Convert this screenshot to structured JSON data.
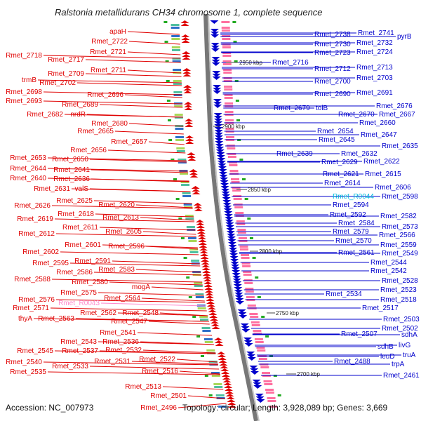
{
  "title": "Ralstonia metallidurans CH34 chromosome 1, complete sequence",
  "footer": {
    "accession": "Accession: NC_007973",
    "summary": "Topology: circular; Length: 3,928,089 bp; Genes: 3,669"
  },
  "colors": {
    "left_genes": "#e00000",
    "right_genes": "#0000cc",
    "rna_left": "#ff88cc",
    "rna_right": "#00bbdd",
    "backbone": "#888888",
    "tick": "#22aa22"
  },
  "kbp_markers": [
    "2950 kbp",
    "2900 kbp",
    "2850 kbp",
    "2800 kbp",
    "2750 kbp",
    "2700 kbp"
  ],
  "left_labels": [
    "apaH",
    "Rmet_2722",
    "Rmet_2721",
    "Rmet_2718",
    "Rmet_2717",
    "Rmet_2711",
    "Rmet_2709",
    "trmB",
    "Rmet_2702",
    "Rmet_2698",
    "Rmet_2696",
    "Rmet_2693",
    "Rmet_2689",
    "Rmet_2682",
    "nrdR",
    "Rmet_2680",
    "Rmet_2665",
    "Rmet_2657",
    "Rmet_2656",
    "Rmet_2653",
    "Rmet_2650",
    "Rmet_2644",
    "Rmet_2641",
    "Rmet_2640",
    "Rmet_2636",
    "Rmet_2631",
    "valS",
    "Rmet_2625",
    "Rmet_2626",
    "Rmet_2620",
    "Rmet_2618",
    "Rmet_2619",
    "Rmet_2613",
    "Rmet_2611",
    "Rmet_2612",
    "Rmet_2605",
    "Rmet_2601",
    "Rmet_2596",
    "Rmet_2602",
    "Rmet_2591",
    "Rmet_2595",
    "Rmet_2586",
    "Rmet_2583",
    "Rmet_2588",
    "Rmet_2580",
    "mogA",
    "Rmet_2575",
    "Rmet_2564",
    "Rmet_2576",
    "Rmet_R0043",
    "Rmet_2571",
    "Rmet_2562",
    "Rmet_2548",
    "thyA",
    "Rmet_2563",
    "Rmet_2547",
    "Rmet_2541",
    "Rmet_2543",
    "Rmet_2536",
    "Rmet_2545",
    "Rmet_2537",
    "Rmet_2532",
    "Rmet_2540",
    "Rmet_2531",
    "Rmet_2522",
    "Rmet_2533",
    "Rmet_2535",
    "Rmet_2516",
    "Rmet_2513",
    "Rmet_2501",
    "Rmet_2496"
  ],
  "right_labels": [
    "Rmet_2738",
    "Rmet_2741",
    "pyrB",
    "Rmet_2730",
    "Rmet_2732",
    "Rmet_2723",
    "Rmet_2724",
    "Rmet_2716",
    "Rmet_2712",
    "Rmet_2713",
    "Rmet_2703",
    "Rmet_2700",
    "Rmet_2690",
    "Rmet_2691",
    "Rmet_2676",
    "Rmet_2679",
    "tolB",
    "Rmet_2670",
    "Rmet_2667",
    "Rmet_2660",
    "Rmet_2654",
    "Rmet_2647",
    "Rmet_2645",
    "Rmet_2635",
    "Rmet_2639",
    "Rmet_2632",
    "Rmet_2629",
    "Rmet_2622",
    "Rmet_2621",
    "Rmet_2615",
    "Rmet_2614",
    "Rmet_2606",
    "Rmet_R0044",
    "Rmet_2598",
    "Rmet_2594",
    "Rmet_2592",
    "Rmet_2582",
    "Rmet_2584",
    "Rmet_2573",
    "Rmet_2579",
    "Rmet_2566",
    "Rmet_2570",
    "Rmet_2559",
    "Rmet_2561",
    "Rmet_2549",
    "Rmet_2544",
    "Rmet_2542",
    "Rmet_2528",
    "Rmet_2534",
    "Rmet_2523",
    "Rmet_2518",
    "Rmet_2517",
    "Rmet_2503",
    "Rmet_2507",
    "Rmet_2502",
    "sdhA",
    "sdhB",
    "livG",
    "Rmet_2488",
    "leuD",
    "truA",
    "trpA",
    "Rmet_2461"
  ]
}
